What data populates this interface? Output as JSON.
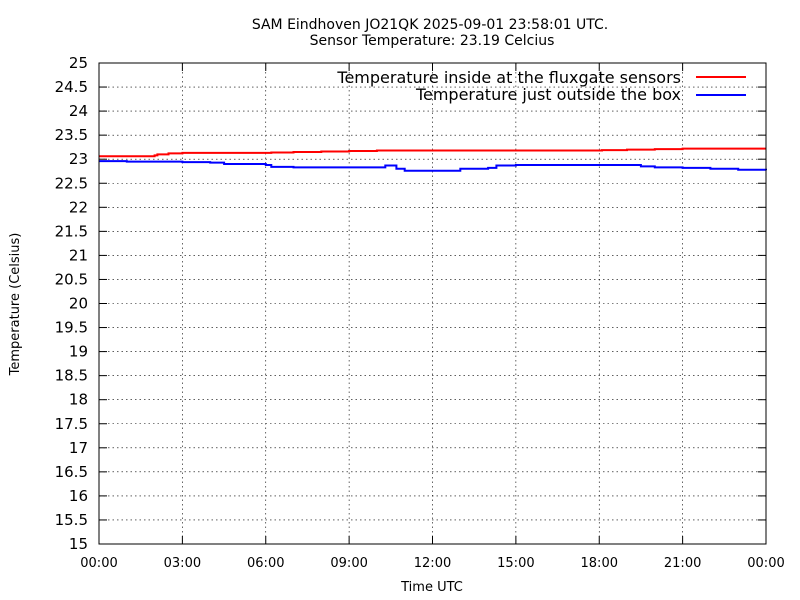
{
  "title_line1": "SAM Eindhoven JO21QK 2025-09-01 23:58:01 UTC.",
  "title_line2": "Sensor Temperature: 23.19 Celcius",
  "chart_data": {
    "type": "line",
    "xlabel": "Time UTC",
    "ylabel": "Temperature (Celsius)",
    "xlim": [
      0,
      24
    ],
    "ylim": [
      15,
      25
    ],
    "x_ticks": [
      {
        "value": 0,
        "label": "00:00"
      },
      {
        "value": 3,
        "label": "03:00"
      },
      {
        "value": 6,
        "label": "06:00"
      },
      {
        "value": 9,
        "label": "09:00"
      },
      {
        "value": 12,
        "label": "12:00"
      },
      {
        "value": 15,
        "label": "15:00"
      },
      {
        "value": 18,
        "label": "18:00"
      },
      {
        "value": 21,
        "label": "21:00"
      },
      {
        "value": 24,
        "label": "00:00"
      }
    ],
    "y_ticks": [
      {
        "value": 15,
        "label": "15"
      },
      {
        "value": 15.5,
        "label": "15.5"
      },
      {
        "value": 16,
        "label": "16"
      },
      {
        "value": 16.5,
        "label": "16.5"
      },
      {
        "value": 17,
        "label": "17"
      },
      {
        "value": 17.5,
        "label": "17.5"
      },
      {
        "value": 18,
        "label": "18"
      },
      {
        "value": 18.5,
        "label": "18.5"
      },
      {
        "value": 19,
        "label": "19"
      },
      {
        "value": 19.5,
        "label": "19.5"
      },
      {
        "value": 20,
        "label": "20"
      },
      {
        "value": 20.5,
        "label": "20.5"
      },
      {
        "value": 21,
        "label": "21"
      },
      {
        "value": 21.5,
        "label": "21.5"
      },
      {
        "value": 22,
        "label": "22"
      },
      {
        "value": 22.5,
        "label": "22.5"
      },
      {
        "value": 23,
        "label": "23"
      },
      {
        "value": 23.5,
        "label": "23.5"
      },
      {
        "value": 24,
        "label": "24"
      },
      {
        "value": 24.5,
        "label": "24.5"
      },
      {
        "value": 25,
        "label": "25"
      }
    ],
    "grid": true,
    "legend_position": "top-right",
    "series": [
      {
        "name": "Temperature inside at the fluxgate sensors",
        "color": "#ff0000",
        "x": [
          0,
          1.5,
          2.0,
          2.1,
          2.5,
          3.0,
          5.0,
          6.0,
          6.2,
          7.0,
          8.0,
          9.0,
          10.0,
          12.0,
          15.0,
          18.0,
          18.1,
          19.0,
          20.0,
          21.0,
          22.0,
          23.0,
          24.0
        ],
        "y": [
          23.06,
          23.06,
          23.08,
          23.1,
          23.12,
          23.13,
          23.13,
          23.13,
          23.14,
          23.15,
          23.16,
          23.17,
          23.18,
          23.18,
          23.18,
          23.18,
          23.19,
          23.2,
          23.21,
          23.22,
          23.22,
          23.22,
          23.22
        ]
      },
      {
        "name": "Temperature just outside the box",
        "color": "#0000ff",
        "x": [
          0,
          1.0,
          3.0,
          4.0,
          4.5,
          6.0,
          6.2,
          7.0,
          10.0,
          10.3,
          10.7,
          11.0,
          11.5,
          12.5,
          13.0,
          14.0,
          14.3,
          15.0,
          18.0,
          19.0,
          19.5,
          20.0,
          21.0,
          22.0,
          23.0,
          24.0
        ],
        "y": [
          22.96,
          22.95,
          22.94,
          22.93,
          22.9,
          22.88,
          22.84,
          22.83,
          22.83,
          22.87,
          22.8,
          22.76,
          22.76,
          22.76,
          22.8,
          22.82,
          22.87,
          22.88,
          22.88,
          22.88,
          22.85,
          22.83,
          22.82,
          22.8,
          22.78,
          22.77
        ]
      }
    ]
  }
}
